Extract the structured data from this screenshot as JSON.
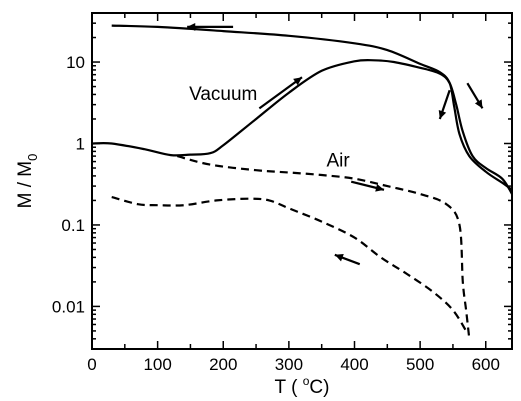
{
  "chart_data": {
    "type": "line",
    "title": "",
    "xlabel": "T ( oC)",
    "xlabel_parts": {
      "prefix": "T ( ",
      "sup": "o",
      "suffix": "C)"
    },
    "ylabel": "M / M0",
    "ylabel_parts": {
      "main": "M / M",
      "sub": "0"
    },
    "xlim": [
      0,
      640
    ],
    "ylim": [
      0.003,
      40
    ],
    "yscale": "log",
    "grid": false,
    "legend": "none",
    "x_ticks": [
      {
        "value": 0,
        "label": "0"
      },
      {
        "value": 100,
        "label": "100"
      },
      {
        "value": 200,
        "label": "200"
      },
      {
        "value": 300,
        "label": "300"
      },
      {
        "value": 400,
        "label": "400"
      },
      {
        "value": 500,
        "label": "500"
      },
      {
        "value": 600,
        "label": "600"
      }
    ],
    "y_ticks": [
      {
        "value": 0.01,
        "label": "0.01"
      },
      {
        "value": 0.1,
        "label": "0.1"
      },
      {
        "value": 1,
        "label": "1"
      },
      {
        "value": 10,
        "label": "10"
      }
    ],
    "series": [
      {
        "style": "solid",
        "x": [
          30,
          100,
          200,
          300,
          400,
          450,
          500,
          530,
          545,
          552,
          560,
          575,
          600,
          625,
          640
        ],
        "y": [
          28,
          27,
          24,
          21,
          17,
          14,
          9.5,
          7.5,
          5.5,
          2.8,
          1.3,
          0.7,
          0.45,
          0.33,
          0.27
        ]
      },
      {
        "style": "solid",
        "x": [
          0,
          30,
          80,
          120,
          150,
          180,
          200,
          250,
          300,
          350,
          400,
          430,
          460,
          500,
          530,
          545,
          555,
          565,
          580,
          600,
          625,
          640
        ],
        "y": [
          1.0,
          1.0,
          0.85,
          0.72,
          0.73,
          0.76,
          0.95,
          2.0,
          4.2,
          7.8,
          10.2,
          10.5,
          10.0,
          8.5,
          7.2,
          5.5,
          3.0,
          1.4,
          0.7,
          0.5,
          0.37,
          0.24
        ]
      },
      {
        "style": "dashed",
        "x": [
          130,
          180,
          250,
          300,
          350,
          400,
          450,
          500,
          540,
          560,
          565,
          570,
          575
        ],
        "y": [
          0.7,
          0.55,
          0.47,
          0.44,
          0.41,
          0.37,
          0.3,
          0.24,
          0.18,
          0.1,
          0.02,
          0.009,
          0.004
        ]
      },
      {
        "style": "dashed",
        "x": [
          30,
          70,
          100,
          140,
          190,
          240,
          270,
          300,
          350,
          400,
          440,
          480,
          520,
          550,
          570
        ],
        "y": [
          0.22,
          0.18,
          0.175,
          0.175,
          0.2,
          0.21,
          0.2,
          0.16,
          0.11,
          0.07,
          0.04,
          0.025,
          0.015,
          0.009,
          0.005
        ]
      }
    ],
    "annotations": [
      {
        "text": "Vacuum",
        "x": 200,
        "y": 3.4
      },
      {
        "text": "Air",
        "x": 375,
        "y": 0.52
      }
    ],
    "arrows": [
      {
        "x1": 215,
        "y1": 27,
        "x2": 145,
        "y2": 27
      },
      {
        "x1": 255,
        "y1": 2.7,
        "x2": 320,
        "y2": 6.5
      },
      {
        "x1": 395,
        "y1": 0.34,
        "x2": 445,
        "y2": 0.27
      },
      {
        "x1": 545,
        "y1": 4.5,
        "x2": 530,
        "y2": 2.0
      },
      {
        "x1": 572,
        "y1": 5.5,
        "x2": 595,
        "y2": 2.7
      },
      {
        "x1": 408,
        "y1": 0.033,
        "x2": 370,
        "y2": 0.043
      }
    ]
  }
}
